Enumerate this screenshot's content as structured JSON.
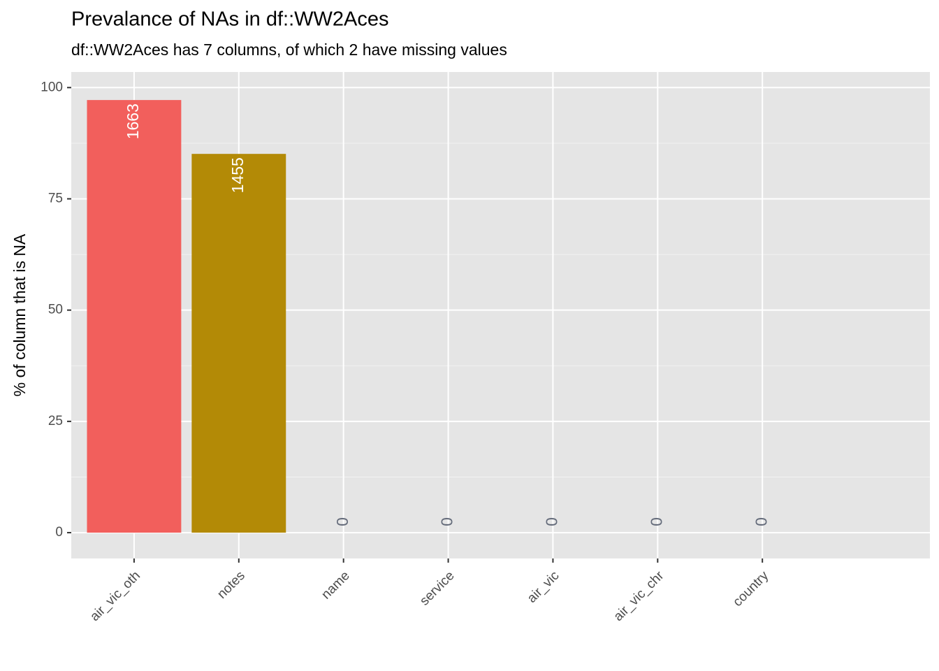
{
  "chart_data": {
    "type": "bar",
    "title": "Prevalance of NAs in df::WW2Aces",
    "subtitle": "df::WW2Aces has 7 columns, of which 2 have missing values",
    "y_label": "% of column that is NA",
    "categories": [
      "air_vic_oth",
      "notes",
      "name",
      "service",
      "air_vic",
      "air_vic_chr",
      "country"
    ],
    "values": [
      97.2,
      85.1,
      0,
      0,
      0,
      0,
      0
    ],
    "na_counts": [
      1663,
      1455,
      0,
      0,
      0,
      0,
      0
    ],
    "colors": [
      "#f25f5c",
      "#b38a06",
      "#53b400",
      "#00c094",
      "#00b6eb",
      "#a58aff",
      "#fb61d7"
    ],
    "ylim": [
      -5.8,
      103.5
    ],
    "yticks": [
      0,
      25,
      50,
      75,
      100
    ],
    "grid": true
  }
}
